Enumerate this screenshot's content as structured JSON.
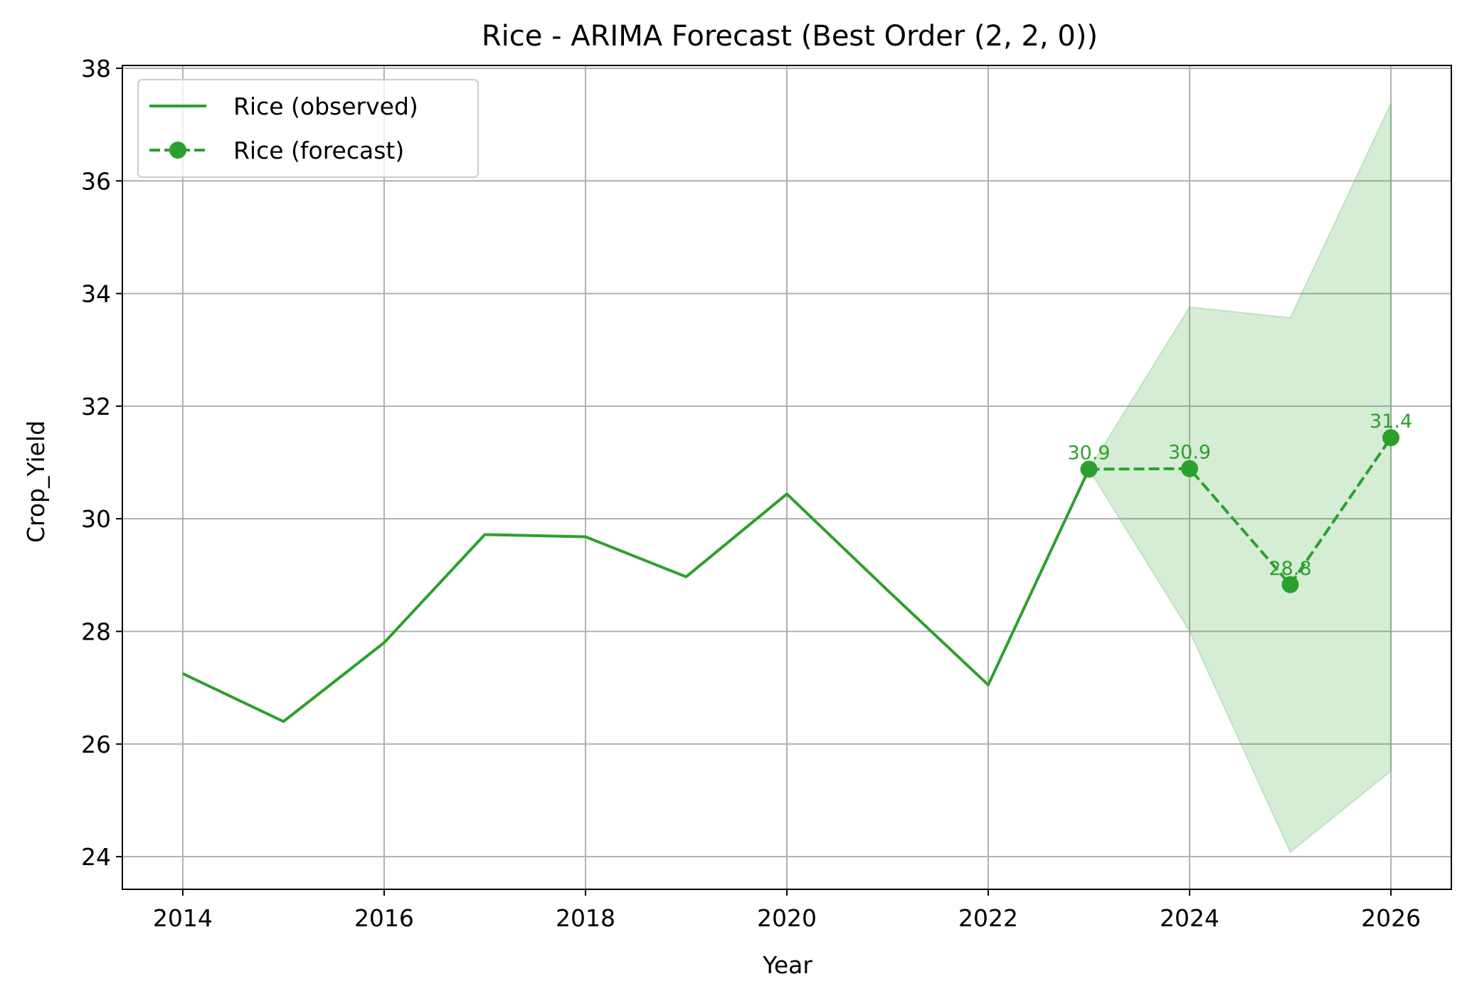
{
  "chart_data": {
    "type": "line",
    "title": "Rice - ARIMA Forecast (Best Order (2, 2, 0))",
    "xlabel": "Year",
    "ylabel": "Crop_Yield",
    "xlim": [
      2013.4,
      2026.6
    ],
    "ylim": [
      23.42,
      38.05
    ],
    "xticks": [
      "2014",
      "2016",
      "2018",
      "2020",
      "2022",
      "2024",
      "2026"
    ],
    "yticks": [
      "24",
      "26",
      "28",
      "30",
      "32",
      "34",
      "36",
      "38"
    ],
    "grid": true,
    "legend_position": "top-left",
    "colors": {
      "line": "#2ca02c",
      "band": "#2ca02c",
      "grid": "#b0b0b0"
    },
    "series": [
      {
        "name": "Rice (observed)",
        "style": "solid",
        "x": [
          2014,
          2015,
          2016,
          2017,
          2018,
          2019,
          2020,
          2021,
          2022,
          2023
        ],
        "values": [
          27.25,
          26.4,
          27.8,
          29.72,
          29.68,
          28.97,
          30.44,
          28.73,
          27.05,
          30.88
        ]
      },
      {
        "name": "Rice (forecast)",
        "style": "dashed",
        "marker": "circle",
        "x": [
          2023,
          2024,
          2025,
          2026
        ],
        "values": [
          30.88,
          30.89,
          28.83,
          31.44
        ],
        "labels": [
          "30.9",
          "30.9",
          "28.8",
          "31.4"
        ]
      }
    ],
    "confidence_band": {
      "x": [
        2023,
        2024,
        2025,
        2026
      ],
      "lower": [
        30.88,
        28.0,
        24.08,
        25.52
      ],
      "upper": [
        30.88,
        33.76,
        33.57,
        37.38
      ]
    }
  }
}
